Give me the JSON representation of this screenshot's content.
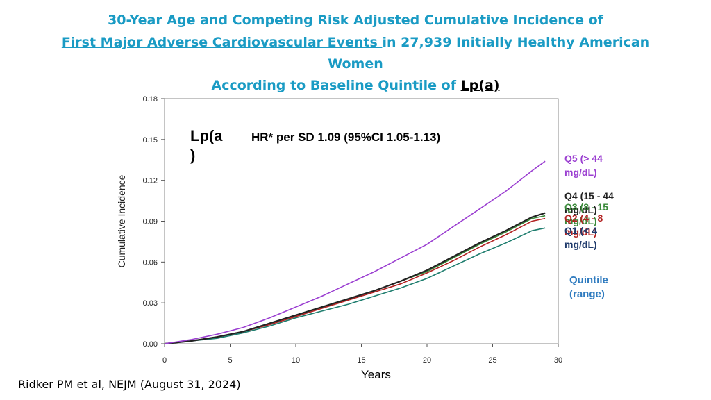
{
  "title": {
    "line1": "30-Year Age and Competing Risk Adjusted Cumulative Incidence of",
    "line2_underlined": "First Major Adverse Cardiovascular Events ",
    "line2_rest": "in 27,939 Initially Healthy American",
    "line3": "Women",
    "line4_prefix": "According to Baseline Quintile of ",
    "line4_black": "Lp(a)"
  },
  "annotation": {
    "lpa_label": "Lp(a\n)",
    "hr_text": "HR* per SD 1.09 (95%CI 1.05-1.13)"
  },
  "quintile_note": "Quintile\n(range)",
  "citation": "Ridker PM et al, NEJM (August 31, 2024)",
  "colors": {
    "title": "#1a9bc4",
    "Q5": "#9b3fd1",
    "Q4": "#222222",
    "Q3": "#3a8a3a",
    "Q2": "#b22222",
    "Q1": "#1f3a6b",
    "teal_line": "#1e7d6e",
    "note": "#2f7bbf"
  },
  "chart_data": {
    "type": "line",
    "title": "",
    "xlabel": "Years",
    "ylabel": "Cumulative Incidence",
    "xlim": [
      0,
      30
    ],
    "ylim": [
      0,
      0.18
    ],
    "xticks": [
      "0",
      "5",
      "10",
      "15",
      "20",
      "25",
      "30"
    ],
    "yticks": [
      "0.00",
      "0.03",
      "0.06",
      "0.09",
      "0.12",
      "0.15",
      "0.18"
    ],
    "x": [
      0,
      2,
      4,
      6,
      8,
      10,
      12,
      14,
      16,
      18,
      20,
      22,
      24,
      26,
      28,
      29
    ],
    "series": [
      {
        "name": "Q5  (> 44\nmg/dL)",
        "color": "#9b3fd1",
        "values": [
          0,
          0.003,
          0.007,
          0.012,
          0.019,
          0.027,
          0.035,
          0.044,
          0.053,
          0.063,
          0.073,
          0.086,
          0.099,
          0.112,
          0.127,
          0.134
        ]
      },
      {
        "name": "Q4  (15 - 44\nmg/dL)",
        "color": "#222222",
        "values": [
          0,
          0.002,
          0.005,
          0.009,
          0.015,
          0.021,
          0.027,
          0.033,
          0.039,
          0.046,
          0.054,
          0.064,
          0.074,
          0.083,
          0.093,
          0.096
        ]
      },
      {
        "name": "Q3  (8 - 15\nmg/dL)",
        "color": "#3a8a3a",
        "values": [
          0,
          0.002,
          0.005,
          0.009,
          0.015,
          0.021,
          0.027,
          0.033,
          0.039,
          0.046,
          0.053,
          0.063,
          0.073,
          0.082,
          0.092,
          0.094
        ]
      },
      {
        "name": "Q2  (4 - 8\nmg/dL)",
        "color": "#b22222",
        "values": [
          0,
          0.002,
          0.005,
          0.009,
          0.014,
          0.02,
          0.026,
          0.032,
          0.038,
          0.044,
          0.052,
          0.061,
          0.071,
          0.08,
          0.09,
          0.092
        ]
      },
      {
        "name": "Q1  (< 4\nmg/dL)",
        "color": "#1f3a6b",
        "values": [
          0,
          0.002,
          0.004,
          0.008,
          0.013,
          0.019,
          0.024,
          0.029,
          0.035,
          0.041,
          0.048,
          0.057,
          0.066,
          0.074,
          0.083,
          0.085
        ]
      }
    ]
  }
}
